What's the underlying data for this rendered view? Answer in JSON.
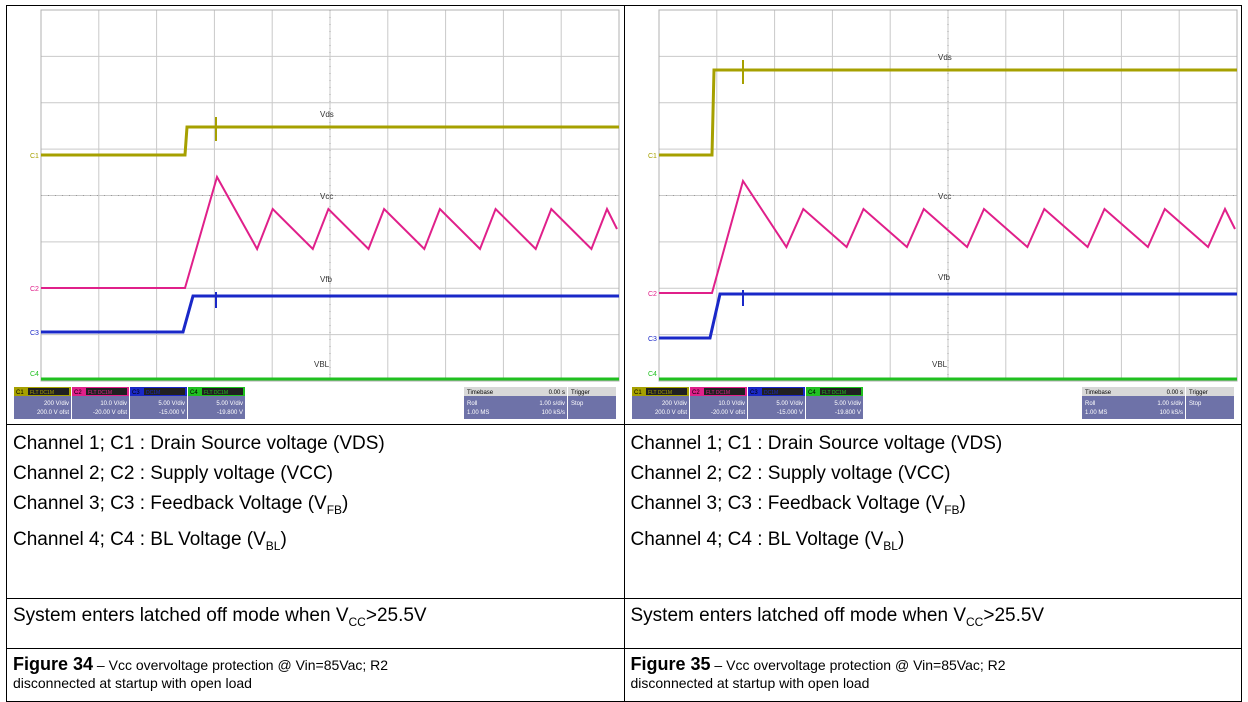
{
  "figures": [
    {
      "scope": {
        "traces": {
          "vds": "Vds",
          "vcc": "Vcc",
          "vfb": "Vfb",
          "vbl": "VBL"
        },
        "markers": {
          "c1": "C1",
          "c2": "C2",
          "c3": "C3",
          "c4": "C4"
        },
        "channels": [
          {
            "id": "C1",
            "coupling": "FLT DC1M",
            "vdiv": "200 V/div",
            "offset": "200.0 V ofst",
            "color": "#a6a000"
          },
          {
            "id": "C2",
            "coupling": "FLT DC1M",
            "vdiv": "10.0 V/div",
            "offset": "-20.00 V ofst",
            "color": "#e0208a"
          },
          {
            "id": "C3",
            "coupling": "DC1M",
            "vdiv": "5.00 V/div",
            "offset": "-15.000 V",
            "color": "#1a28c8"
          },
          {
            "id": "C4",
            "coupling": "FLT DC1M",
            "vdiv": "5.00 V/div",
            "offset": "-19.800 V",
            "color": "#20c020"
          }
        ],
        "timebase": {
          "label": "Timebase",
          "value": "0.00 s",
          "mode": "Roll",
          "tdiv": "1.00 s/div",
          "samples": "1.00 MS",
          "rate": "100 kS/s"
        },
        "trigger": {
          "label": "Trigger",
          "state": "Stop"
        }
      },
      "channel_captions": [
        {
          "text": "Channel 1; C1 : Drain Source voltage (VDS)"
        },
        {
          "text": "Channel 2; C2 : Supply voltage (VCC)"
        },
        {
          "text": "Channel 3; C3 : Feedback Voltage (V",
          "sub": "FB",
          "end": ")"
        },
        {
          "text": "Channel 4; C4 : BL Voltage (V",
          "sub": "BL",
          "end": ")"
        }
      ],
      "status": {
        "pre": "System enters latched off  mode when V",
        "sub": "CC",
        "post": ">25.5V"
      },
      "figure_label": "Figure 34",
      "figure_sep": " – ",
      "figure_caption_1": "Vcc overvoltage protection @ Vin=85Vac; R2",
      "figure_caption_2": "disconnected at startup with open load"
    },
    {
      "scope": {
        "traces": {
          "vds": "Vds",
          "vcc": "Vcc",
          "vfb": "Vfb",
          "vbl": "VBL"
        },
        "markers": {
          "c1": "C1",
          "c2": "C2",
          "c3": "C3",
          "c4": "C4"
        },
        "channels": [
          {
            "id": "C1",
            "coupling": "FLT DC1M",
            "vdiv": "200 V/div",
            "offset": "200.0 V ofst",
            "color": "#a6a000"
          },
          {
            "id": "C2",
            "coupling": "FLT DC1M",
            "vdiv": "10.0 V/div",
            "offset": "-20.00 V ofst",
            "color": "#e0208a"
          },
          {
            "id": "C3",
            "coupling": "DC1M",
            "vdiv": "5.00 V/div",
            "offset": "-15.000 V",
            "color": "#1a28c8"
          },
          {
            "id": "C4",
            "coupling": "FLT DC1M",
            "vdiv": "5.00 V/div",
            "offset": "-19.800 V",
            "color": "#20c020"
          }
        ],
        "timebase": {
          "label": "Timebase",
          "value": "0.00 s",
          "mode": "Roll",
          "tdiv": "1.00 s/div",
          "samples": "1.00 MS",
          "rate": "100 kS/s"
        },
        "trigger": {
          "label": "Trigger",
          "state": "Stop"
        }
      },
      "channel_captions": [
        {
          "text": "Channel 1; C1 : Drain Source voltage (VDS)"
        },
        {
          "text": "Channel 2; C2 : Supply voltage (VCC)"
        },
        {
          "text": "Channel 3; C3 : Feedback Voltage (V",
          "sub": "FB",
          "end": ")"
        },
        {
          "text": "Channel 4; C4 : BL Voltage (V",
          "sub": "BL",
          "end": ")"
        }
      ],
      "status": {
        "pre": "System enters latched off  mode when V",
        "sub": "CC",
        "post": ">25.5V"
      },
      "figure_label": "Figure 35",
      "figure_sep": " – ",
      "figure_caption_1": "Vcc overvoltage protection @ Vin=85Vac; R2",
      "figure_caption_2": "disconnected at startup with open load"
    }
  ]
}
